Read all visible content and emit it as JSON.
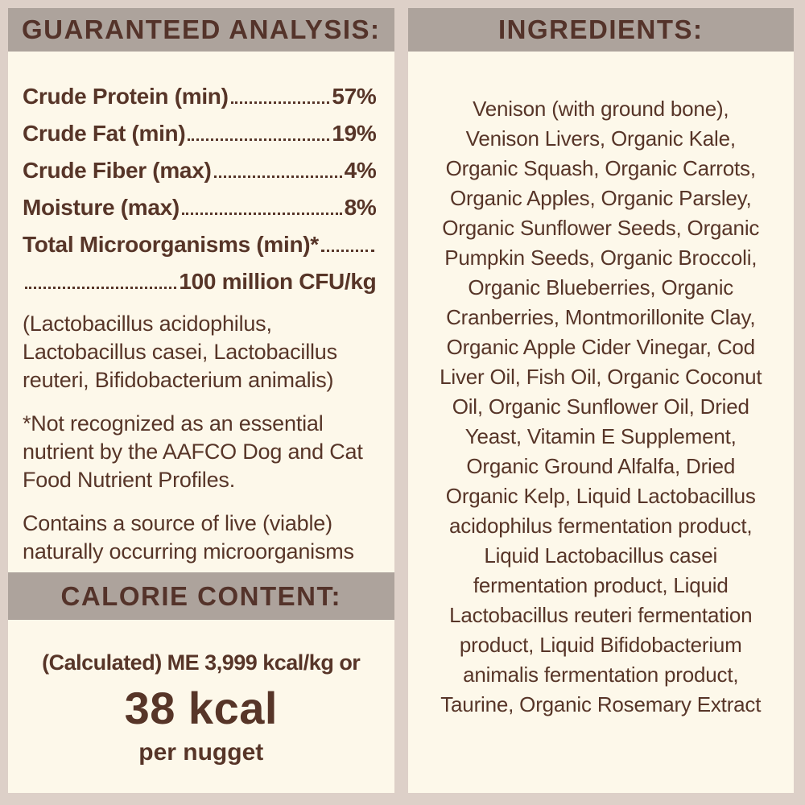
{
  "theme": {
    "background": "#ddd0c8",
    "header_bar": "#ada39c",
    "panel": "#fdf8ea",
    "text": "#573528"
  },
  "guaranteed_analysis": {
    "title": "GUARANTEED ANALYSIS:",
    "rows": [
      {
        "label": "Crude Protein (min)",
        "value": "57%"
      },
      {
        "label": "Crude Fat (min)",
        "value": "19%"
      },
      {
        "label": "Crude Fiber (max)",
        "value": "4%"
      },
      {
        "label": "Moisture (max)",
        "value": "8%"
      },
      {
        "label": "Total Microorganisms (min)*",
        "value": ""
      },
      {
        "label": "",
        "value": "100 million CFU/kg"
      }
    ],
    "notes": [
      {
        "lines": [
          "(Lactobacillus acidophilus,",
          "Lactobacillus casei, Lactobacillus",
          "reuteri, Bifidobacterium animalis)"
        ]
      },
      {
        "lines": [
          "*Not recognized as an essential",
          "nutrient by the AAFCO Dog and Cat",
          "Food Nutrient Profiles."
        ]
      },
      {
        "lines": [
          "Contains a source of live (viable)",
          "naturally occurring microorganisms"
        ]
      }
    ]
  },
  "calorie_content": {
    "title": "CALORIE CONTENT:",
    "line1": "(Calculated) ME 3,999 kcal/kg or",
    "value": "38 kcal",
    "unit": "per nugget"
  },
  "ingredients": {
    "title": "INGREDIENTS:",
    "lines": [
      "Venison (with ground bone),",
      "Venison Livers, Organic Kale,",
      "Organic Squash, Organic Carrots,",
      "Organic Apples, Organic Parsley,",
      "Organic Sunflower Seeds, Organic",
      "Pumpkin Seeds, Organic Broccoli,",
      "Organic Blueberries, Organic",
      "Cranberries, Montmorillonite Clay,",
      "Organic Apple Cider Vinegar, Cod",
      "Liver Oil, Fish Oil, Organic Coconut",
      "Oil, Organic Sunflower Oil, Dried",
      "Yeast, Vitamin E Supplement,",
      "Organic Ground Alfalfa, Dried",
      "Organic Kelp, Liquid Lactobacillus",
      "acidophilus fermentation product,",
      "Liquid Lactobacillus casei",
      "fermentation product, Liquid",
      "Lactobacillus reuteri fermentation",
      "product, Liquid Bifidobacterium",
      "animalis fermentation product,",
      "Taurine, Organic Rosemary Extract"
    ]
  }
}
